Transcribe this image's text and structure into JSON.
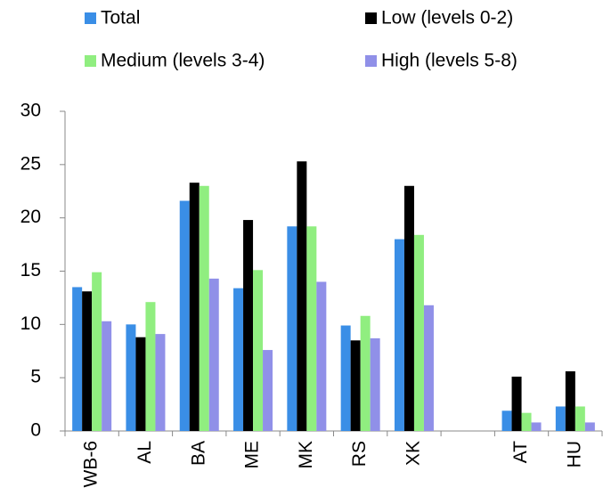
{
  "chart_data": {
    "type": "bar",
    "categories": [
      "WB-6",
      "AL",
      "BA",
      "ME",
      "MK",
      "RS",
      "XK",
      null,
      "AT",
      "HU"
    ],
    "series": [
      {
        "name": "Total",
        "color": "#3a8ee6",
        "values": [
          13.5,
          10.0,
          21.6,
          13.4,
          19.2,
          9.9,
          18.0,
          null,
          1.9,
          2.3
        ]
      },
      {
        "name": "Low (levels 0-2)",
        "color": "#000000",
        "values": [
          13.1,
          8.8,
          23.3,
          19.8,
          25.3,
          8.5,
          23.0,
          null,
          5.1,
          5.6
        ]
      },
      {
        "name": "Medium (levels 3-4)",
        "color": "#90ee80",
        "values": [
          14.9,
          12.1,
          23.0,
          15.1,
          19.2,
          10.8,
          18.4,
          null,
          1.7,
          2.3
        ]
      },
      {
        "name": "High (levels 5-8)",
        "color": "#9090e8",
        "values": [
          10.3,
          9.1,
          14.3,
          7.6,
          14.0,
          8.7,
          11.8,
          null,
          0.8,
          0.8
        ]
      }
    ],
    "ylim": [
      0,
      30
    ],
    "yticks": [
      0,
      5,
      10,
      15,
      20,
      25,
      30
    ],
    "grid": false
  }
}
